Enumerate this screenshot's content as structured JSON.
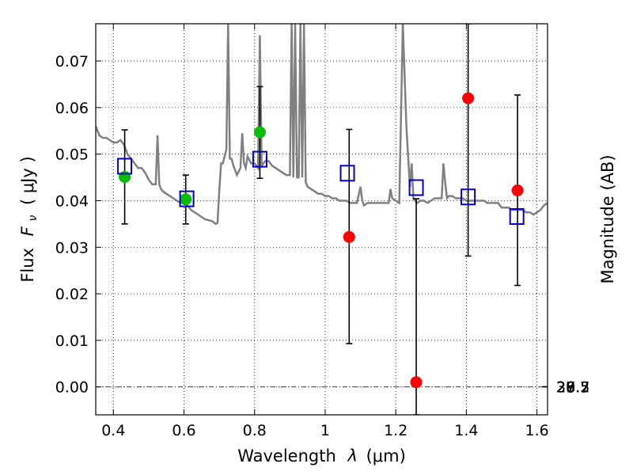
{
  "chart_data": {
    "type": "scatter",
    "xlabel_prefix": "Wavelength",
    "xlabel_symbol": "λ",
    "xlabel_unit": "(μm)",
    "ylabel_prefix": "Flux",
    "ylabel_symbol": "F",
    "ylabel_sub": "ν",
    "ylabel_unit": "( μJy )",
    "y2label": "Magnitude (AB)",
    "xlim": [
      0.35,
      1.63
    ],
    "ylim": [
      -0.006,
      0.078
    ],
    "x_ticks": [
      0.4,
      0.6,
      0.8,
      1.0,
      1.2,
      1.4,
      1.6
    ],
    "x_tick_labels": [
      "0.4",
      "0.6",
      "0.8",
      "1",
      "1.2",
      "1.4",
      "1.6"
    ],
    "y_ticks": [
      0.0,
      0.01,
      0.02,
      0.03,
      0.04,
      0.05,
      0.06,
      0.07
    ],
    "y_tick_labels": [
      "0.00",
      "0.01",
      "0.02",
      "0.03",
      "0.04",
      "0.05",
      "0.06",
      "0.07"
    ],
    "y2_ticks": [
      26.7,
      27,
      27.2,
      27.5,
      28,
      28.5,
      29,
      30
    ],
    "y2_tick_labels": [
      "26.7",
      "27",
      "27.2",
      "27.5",
      "28",
      "28.5",
      "29",
      "30"
    ],
    "grid": true,
    "colors": {
      "model": "#808080",
      "green": "#00c000",
      "red": "#ff0000",
      "squares": "#0000c8",
      "error": "#000000",
      "zero_line": "#000000"
    },
    "series": [
      {
        "kind": "model_spectrum",
        "x": [
          0.35,
          0.36,
          0.37,
          0.38,
          0.39,
          0.4,
          0.41,
          0.42,
          0.43,
          0.44,
          0.45,
          0.46,
          0.47,
          0.48,
          0.49,
          0.5,
          0.51,
          0.52,
          0.525,
          0.53,
          0.535,
          0.54,
          0.55,
          0.56,
          0.57,
          0.58,
          0.59,
          0.6,
          0.61,
          0.62,
          0.63,
          0.64,
          0.65,
          0.66,
          0.67,
          0.68,
          0.69,
          0.695,
          0.7,
          0.705,
          0.71,
          0.72,
          0.725,
          0.73,
          0.735,
          0.74,
          0.75,
          0.76,
          0.765,
          0.77,
          0.775,
          0.78,
          0.79,
          0.8,
          0.81,
          0.815,
          0.82,
          0.83,
          0.84,
          0.85,
          0.86,
          0.87,
          0.88,
          0.89,
          0.9,
          0.905,
          0.91,
          0.915,
          0.92,
          0.925,
          0.93,
          0.935,
          0.94,
          0.945,
          0.95,
          0.96,
          0.97,
          0.98,
          0.99,
          1.0,
          1.01,
          1.02,
          1.03,
          1.04,
          1.05,
          1.06,
          1.07,
          1.08,
          1.09,
          1.1,
          1.105,
          1.11,
          1.12,
          1.13,
          1.14,
          1.15,
          1.16,
          1.17,
          1.18,
          1.185,
          1.19,
          1.2,
          1.21,
          1.22,
          1.23,
          1.24,
          1.245,
          1.25,
          1.26,
          1.27,
          1.28,
          1.29,
          1.3,
          1.31,
          1.32,
          1.33,
          1.335,
          1.34,
          1.345,
          1.35,
          1.36,
          1.37,
          1.38,
          1.39,
          1.4,
          1.41,
          1.42,
          1.43,
          1.44,
          1.45,
          1.46,
          1.47,
          1.48,
          1.49,
          1.5,
          1.51,
          1.52,
          1.53,
          1.54,
          1.55,
          1.56,
          1.57,
          1.58,
          1.59,
          1.6,
          1.61,
          1.62,
          1.63
        ],
        "y": [
          0.056,
          0.054,
          0.0535,
          0.0535,
          0.053,
          0.0525,
          0.0525,
          0.053,
          0.052,
          0.05,
          0.049,
          0.048,
          0.047,
          0.047,
          0.046,
          0.0445,
          0.0435,
          0.0435,
          0.054,
          0.0435,
          0.0425,
          0.042,
          0.0415,
          0.041,
          0.0405,
          0.04,
          0.0395,
          0.0395,
          0.039,
          0.038,
          0.0375,
          0.037,
          0.0365,
          0.036,
          0.0358,
          0.0356,
          0.035,
          0.0352,
          0.042,
          0.048,
          0.048,
          0.051,
          0.078,
          0.049,
          0.049,
          0.0475,
          0.0455,
          0.047,
          0.0545,
          0.048,
          0.047,
          0.0495,
          0.048,
          0.048,
          0.047,
          0.0755,
          0.0475,
          0.0485,
          0.0485,
          0.0475,
          0.047,
          0.0465,
          0.046,
          0.0455,
          0.0455,
          0.078,
          0.045,
          0.078,
          0.045,
          0.045,
          0.078,
          0.045,
          0.078,
          0.044,
          0.043,
          0.0425,
          0.042,
          0.0415,
          0.0415,
          0.041,
          0.041,
          0.0405,
          0.0405,
          0.04,
          0.04,
          0.04,
          0.0395,
          0.0395,
          0.0395,
          0.043,
          0.04,
          0.039,
          0.0395,
          0.0395,
          0.0395,
          0.0395,
          0.0395,
          0.0395,
          0.0395,
          0.0425,
          0.0405,
          0.04,
          0.0395,
          0.078,
          0.056,
          0.043,
          0.048,
          0.0405,
          0.0395,
          0.04,
          0.04,
          0.0395,
          0.04,
          0.0405,
          0.0405,
          0.0405,
          0.048,
          0.044,
          0.0405,
          0.041,
          0.041,
          0.0405,
          0.0405,
          0.0405,
          0.04,
          0.04,
          0.04,
          0.04,
          0.04,
          0.04,
          0.0395,
          0.0395,
          0.0395,
          0.0395,
          0.0385,
          0.0385,
          0.0385,
          0.038,
          0.038,
          0.038,
          0.038,
          0.0375,
          0.0375,
          0.037,
          0.0375,
          0.038,
          0.039,
          0.0395
        ]
      },
      {
        "kind": "green_points",
        "x": [
          0.432,
          0.605,
          0.815
        ],
        "y": [
          0.0451,
          0.0403,
          0.0547
        ],
        "err_low": [
          0.035,
          0.035,
          0.0448
        ],
        "err_high": [
          0.0552,
          0.0455,
          0.0645
        ]
      },
      {
        "kind": "red_points",
        "x": [
          1.068,
          1.258,
          1.405,
          1.545
        ],
        "y": [
          0.0322,
          0.001,
          0.062,
          0.0422
        ],
        "err_low": [
          0.0093,
          -0.006,
          0.0281,
          0.0218
        ],
        "err_high": [
          0.0553,
          0.0404,
          0.078,
          0.0627
        ]
      },
      {
        "kind": "model_squares",
        "x": [
          0.432,
          0.608,
          0.815,
          1.063,
          1.258,
          1.405,
          1.543
        ],
        "y": [
          0.0474,
          0.0404,
          0.0489,
          0.0459,
          0.0428,
          0.0408,
          0.0366
        ]
      }
    ]
  }
}
